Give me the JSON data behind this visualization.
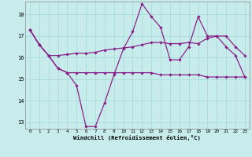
{
  "x": [
    0,
    1,
    2,
    3,
    4,
    5,
    6,
    7,
    8,
    9,
    10,
    11,
    12,
    13,
    14,
    15,
    16,
    17,
    18,
    19,
    20,
    21,
    22,
    23
  ],
  "line_upper": [
    17.3,
    16.6,
    16.1,
    16.1,
    16.15,
    16.2,
    16.2,
    16.25,
    16.35,
    16.4,
    16.45,
    16.5,
    16.6,
    16.7,
    16.7,
    16.65,
    16.65,
    16.7,
    16.65,
    16.9,
    17.0,
    17.0,
    16.5,
    16.1
  ],
  "line_zigzag": [
    17.3,
    16.6,
    16.1,
    15.5,
    15.3,
    14.7,
    12.8,
    12.8,
    13.9,
    15.2,
    16.4,
    17.2,
    18.5,
    17.9,
    17.4,
    15.9,
    15.9,
    16.5,
    17.9,
    17.0,
    17.0,
    16.5,
    16.1,
    15.1
  ],
  "line_flat": [
    17.3,
    16.6,
    16.1,
    15.5,
    15.3,
    15.3,
    15.3,
    15.3,
    15.3,
    15.3,
    15.3,
    15.3,
    15.3,
    15.3,
    15.2,
    15.2,
    15.2,
    15.2,
    15.2,
    15.1,
    15.1,
    15.1,
    15.1,
    15.1
  ],
  "xlim_min": -0.5,
  "xlim_max": 23.5,
  "ylim_min": 12.7,
  "ylim_max": 18.6,
  "yticks": [
    13,
    14,
    15,
    16,
    17,
    18
  ],
  "xticks": [
    0,
    1,
    2,
    3,
    4,
    5,
    6,
    7,
    8,
    9,
    10,
    11,
    12,
    13,
    14,
    15,
    16,
    17,
    18,
    19,
    20,
    21,
    22,
    23
  ],
  "xlabel": "Windchill (Refroidissement éolien,°C)",
  "line_color": "#882288",
  "bg_color": "#c8ecec",
  "grid_color": "#aadddd"
}
